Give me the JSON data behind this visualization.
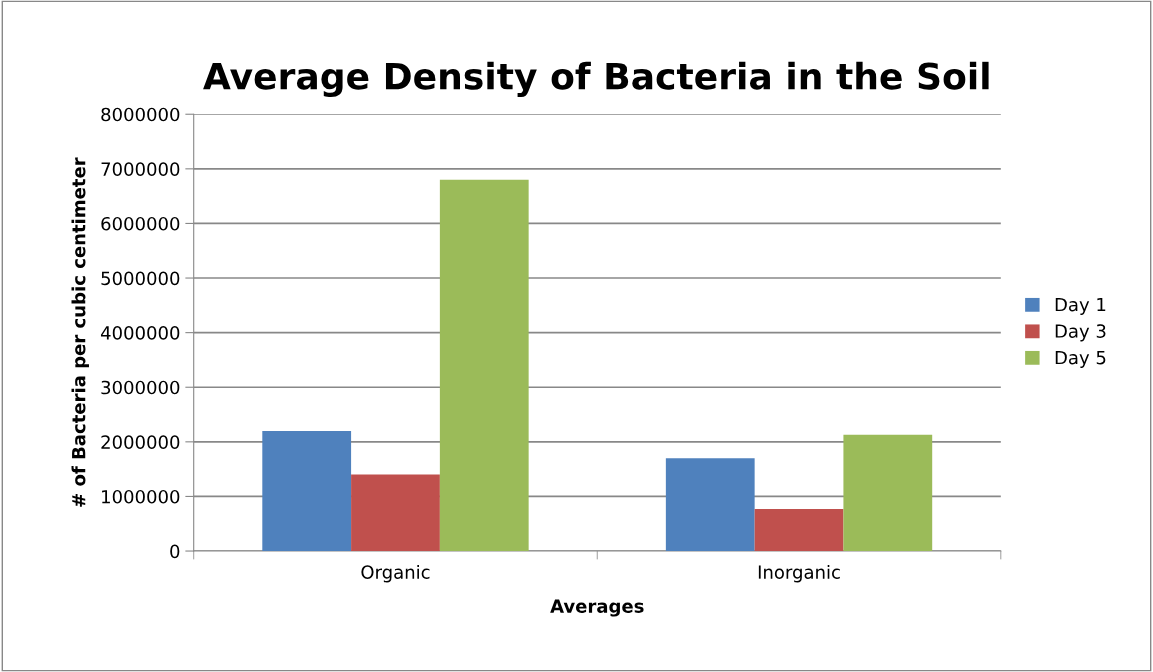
{
  "chart_data": {
    "type": "bar",
    "title": "Average Density of Bacteria in the Soil",
    "xlabel": "Averages",
    "ylabel": "# of Bacteria per cubic centimeter",
    "categories": [
      "Organic",
      "Inorganic"
    ],
    "series": [
      {
        "name": "Day 1",
        "color": "#4f81bd",
        "values": [
          2200000,
          1700000
        ]
      },
      {
        "name": "Day 3",
        "color": "#c0504d",
        "values": [
          1400000,
          770000
        ]
      },
      {
        "name": "Day 5",
        "color": "#9bbb59",
        "values": [
          6800000,
          2130000
        ]
      }
    ],
    "ylim": [
      0,
      8000000
    ],
    "yticks": [
      0,
      1000000,
      2000000,
      3000000,
      4000000,
      5000000,
      6000000,
      7000000,
      8000000
    ],
    "grid": "y",
    "legend": "right"
  }
}
